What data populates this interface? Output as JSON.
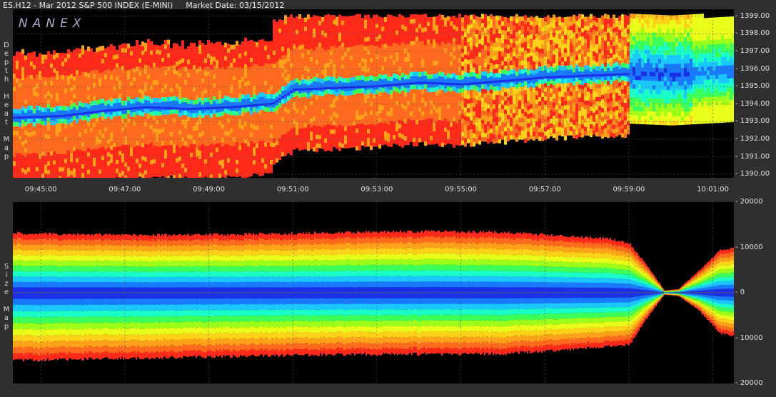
{
  "header": {
    "symbol_title": "ES.H12 - Mar 2012 S&P 500 INDEX (E-MINI)",
    "market_date": "Market Date: 03/15/2012"
  },
  "brand": {
    "logo_text": "NANEX"
  },
  "colors": {
    "background": "#000000",
    "frame": "#2f2f2f",
    "heat_scale": [
      "#ff2a1a",
      "#ff6a1e",
      "#ffa21a",
      "#ffd21a",
      "#e9ff1a",
      "#9cff1a",
      "#3dff5a",
      "#1affc8",
      "#1ac8ff",
      "#1a7aff",
      "#1a30e8"
    ]
  },
  "chart_data": [
    {
      "type": "heatmap",
      "name": "depth-heat-map",
      "side_label": [
        "D",
        "e",
        "p",
        "t",
        "h",
        "",
        "H",
        "e",
        "a",
        "t",
        "",
        "M",
        "a",
        "p"
      ],
      "x_ticks": [
        "09:45:00",
        "09:47:00",
        "09:49:00",
        "09:51:00",
        "09:53:00",
        "09:55:00",
        "09:57:00",
        "09:59:00",
        "10:01:00"
      ],
      "x_range": [
        "09:44:20",
        "10:01:30"
      ],
      "y_ticks": [
        "1399.00",
        "1398.00",
        "1397.00",
        "1396.00",
        "1395.00",
        "1394.00",
        "1393.00",
        "1392.00",
        "1391.00",
        "1390.00"
      ],
      "y_range": [
        1389.8,
        1399.4
      ],
      "grid": true,
      "price_path": [
        {
          "t": "09:44:20",
          "p": 1393.2
        },
        {
          "t": "09:45:30",
          "p": 1393.3
        },
        {
          "t": "09:46:30",
          "p": 1393.6
        },
        {
          "t": "09:47:30",
          "p": 1393.8
        },
        {
          "t": "09:48:30",
          "p": 1393.7
        },
        {
          "t": "09:49:30",
          "p": 1393.8
        },
        {
          "t": "09:50:30",
          "p": 1394.0
        },
        {
          "t": "09:51:00",
          "p": 1394.8
        },
        {
          "t": "09:52:00",
          "p": 1394.9
        },
        {
          "t": "09:53:00",
          "p": 1395.0
        },
        {
          "t": "09:54:00",
          "p": 1395.2
        },
        {
          "t": "09:55:00",
          "p": 1395.1
        },
        {
          "t": "09:56:00",
          "p": 1395.3
        },
        {
          "t": "09:57:00",
          "p": 1395.5
        },
        {
          "t": "09:58:00",
          "p": 1395.6
        },
        {
          "t": "09:59:00",
          "p": 1395.7
        },
        {
          "t": "10:00:00",
          "p": 1395.6
        },
        {
          "t": "10:01:30",
          "p": 1395.8
        }
      ]
    },
    {
      "type": "area",
      "name": "size-map",
      "side_label": [
        "S",
        "i",
        "z",
        "e",
        "",
        "M",
        "a",
        "p"
      ],
      "x_ticks": [
        "09:45:00",
        "09:47:00",
        "09:49:00",
        "09:51:00",
        "09:53:00",
        "09:55:00",
        "09:57:00",
        "09:59:00",
        "10:01:00"
      ],
      "x_range": [
        "09:44:20",
        "10:01:30"
      ],
      "y_ticks": [
        "20000",
        "10000",
        "0",
        "10000",
        "20000"
      ],
      "y_range": [
        -20000,
        20000
      ],
      "grid": true,
      "ask_envelope": [
        {
          "t": "09:44:20",
          "v": 13200
        },
        {
          "t": "09:46:00",
          "v": 12900
        },
        {
          "t": "09:48:00",
          "v": 12800
        },
        {
          "t": "09:50:00",
          "v": 13000
        },
        {
          "t": "09:52:00",
          "v": 13300
        },
        {
          "t": "09:54:00",
          "v": 13600
        },
        {
          "t": "09:56:00",
          "v": 13400
        },
        {
          "t": "09:57:30",
          "v": 12600
        },
        {
          "t": "09:58:30",
          "v": 12000
        },
        {
          "t": "09:59:00",
          "v": 11000
        },
        {
          "t": "09:59:30",
          "v": 5000
        },
        {
          "t": "09:59:50",
          "v": 500
        },
        {
          "t": "10:00:10",
          "v": 800
        },
        {
          "t": "10:00:40",
          "v": 5000
        },
        {
          "t": "10:01:10",
          "v": 9500
        },
        {
          "t": "10:01:30",
          "v": 9800
        }
      ],
      "bid_envelope": [
        {
          "t": "09:44:20",
          "v": 15000
        },
        {
          "t": "09:46:00",
          "v": 14700
        },
        {
          "t": "09:48:00",
          "v": 14400
        },
        {
          "t": "09:50:00",
          "v": 14000
        },
        {
          "t": "09:52:00",
          "v": 13700
        },
        {
          "t": "09:54:00",
          "v": 13600
        },
        {
          "t": "09:56:00",
          "v": 13500
        },
        {
          "t": "09:57:30",
          "v": 12700
        },
        {
          "t": "09:58:30",
          "v": 11800
        },
        {
          "t": "09:59:00",
          "v": 11500
        },
        {
          "t": "09:59:30",
          "v": 4500
        },
        {
          "t": "09:59:50",
          "v": 400
        },
        {
          "t": "10:00:10",
          "v": 700
        },
        {
          "t": "10:00:40",
          "v": 4000
        },
        {
          "t": "10:01:10",
          "v": 9000
        },
        {
          "t": "10:01:30",
          "v": 9500
        }
      ]
    }
  ]
}
